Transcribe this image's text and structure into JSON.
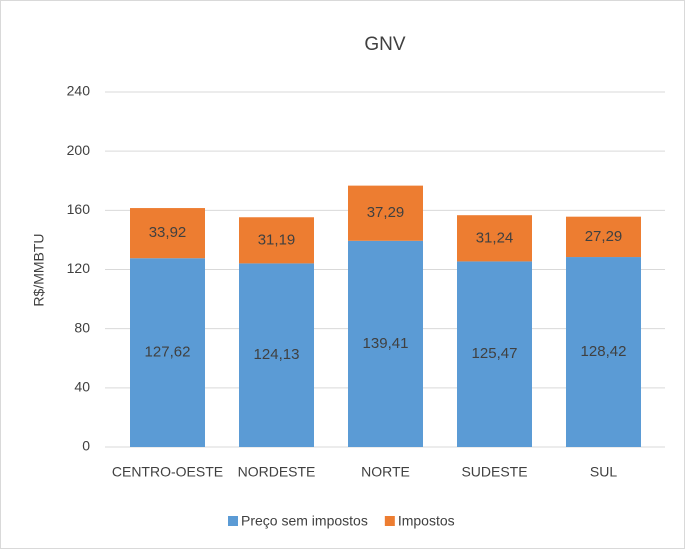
{
  "chart_data": {
    "type": "stacked_bar",
    "title": "GNV",
    "y_label": "R$/MMBTU",
    "categories": [
      "CENTRO-OESTE",
      "NORDESTE",
      "NORTE",
      "SUDESTE",
      "SUL"
    ],
    "series": [
      {
        "name": "Preço sem impostos",
        "color": "#5b9bd5",
        "values": [
          127.62,
          124.13,
          139.41,
          125.47,
          128.42
        ],
        "value_labels": [
          "127,62",
          "124,13",
          "139,41",
          "125,47",
          "128,42"
        ]
      },
      {
        "name": "Impostos",
        "color": "#ed7d31",
        "values": [
          33.92,
          31.19,
          37.29,
          31.24,
          27.29
        ],
        "value_labels": [
          "33,92",
          "31,19",
          "37,29",
          "31,24",
          "27,29"
        ]
      }
    ],
    "ylim": [
      0,
      240
    ],
    "yticks": [
      0,
      40,
      80,
      120,
      160,
      200,
      240
    ],
    "grid": true,
    "legend": "bottom"
  }
}
